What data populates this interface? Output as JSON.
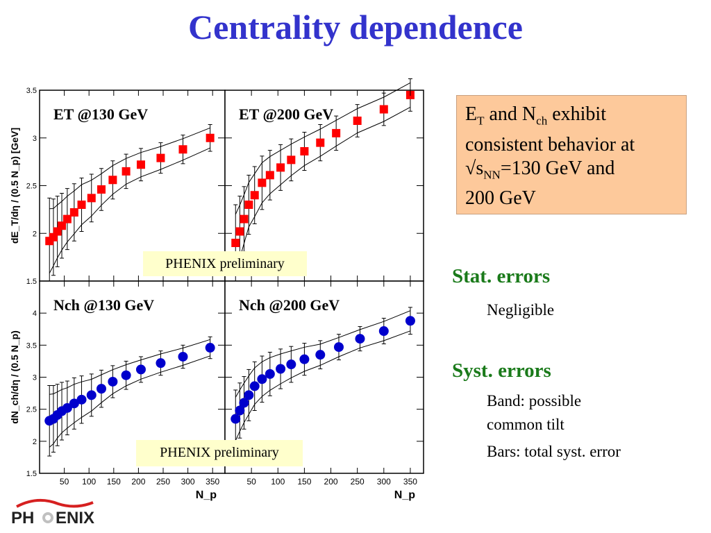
{
  "slide": {
    "title": "Centrality dependence",
    "box": {
      "et": "E",
      "et_sub": "T",
      "and": " and N",
      "nch_sub": "ch",
      "line1_rest": " exhibit",
      "line2": "consistent behavior at",
      "sqrt": "√s",
      "nn_sub": "NN",
      "line3_rest": "=130 GeV and",
      "line4": "200 GeV"
    },
    "stat_heading": "Stat. errors",
    "stat_text": "Negligible",
    "syst_heading": "Syst. errors",
    "syst_band_1": "Band: possible",
    "syst_band_2": "common tilt",
    "syst_bars": "Bars: total syst. error",
    "badge": "PHENIX preliminary",
    "logo_text_left": "PH",
    "logo_text_right": "ENIX",
    "colors": {
      "title": "#3333cc",
      "box": "#fdc99b",
      "heading": "#1a7a1a",
      "et_marker": "#ff0000",
      "nch_marker": "#0000cc"
    }
  },
  "chart_data": [
    {
      "type": "scatter",
      "label": "ET @130 GeV",
      "ylabel": "dE_T/dη / (0.5 N_p) [GeV]",
      "xlabel": "N_p",
      "marker": "square",
      "xlim": [
        0,
        375
      ],
      "ylim": [
        1.5,
        3.5
      ],
      "xticks": [
        50,
        100,
        150,
        200,
        250,
        300,
        350
      ],
      "yticks": [
        1.5,
        2,
        2.5,
        3,
        3.5
      ],
      "x": [
        20,
        28,
        36,
        45,
        56,
        70,
        85,
        105,
        125,
        148,
        175,
        205,
        245,
        290,
        345
      ],
      "y": [
        1.92,
        1.96,
        2.02,
        2.08,
        2.15,
        2.22,
        2.3,
        2.37,
        2.46,
        2.56,
        2.65,
        2.72,
        2.79,
        2.88,
        3.0
      ],
      "err": [
        0.45,
        0.4,
        0.37,
        0.34,
        0.32,
        0.3,
        0.28,
        0.25,
        0.22,
        0.2,
        0.18,
        0.17,
        0.16,
        0.15,
        0.14
      ]
    },
    {
      "type": "scatter",
      "label": "ET @200 GeV",
      "ylabel": "dE_T/dη / (0.5 N_p) [GeV]",
      "xlabel": "N_p",
      "marker": "square",
      "xlim": [
        0,
        375
      ],
      "ylim": [
        1.5,
        3.5
      ],
      "xticks": [
        50,
        100,
        150,
        200,
        250,
        300,
        350
      ],
      "yticks": [
        1.5,
        2,
        2.5,
        3,
        3.5
      ],
      "x": [
        20,
        28,
        36,
        45,
        56,
        70,
        85,
        105,
        125,
        150,
        180,
        210,
        250,
        300,
        350
      ],
      "y": [
        1.9,
        2.02,
        2.15,
        2.3,
        2.4,
        2.53,
        2.61,
        2.69,
        2.77,
        2.86,
        2.95,
        3.05,
        3.18,
        3.3,
        3.45
      ],
      "err": [
        0.4,
        0.37,
        0.34,
        0.31,
        0.3,
        0.28,
        0.26,
        0.24,
        0.22,
        0.2,
        0.19,
        0.18,
        0.17,
        0.17,
        0.17
      ]
    },
    {
      "type": "scatter",
      "label": "Nch @130 GeV",
      "ylabel": "dN_ch/dη / (0.5 N_p)",
      "xlabel": "N_p",
      "marker": "circle",
      "xlim": [
        0,
        375
      ],
      "ylim": [
        1.5,
        4.5
      ],
      "xticks": [
        50,
        100,
        150,
        200,
        250,
        300,
        350
      ],
      "yticks": [
        1.5,
        2,
        2.5,
        3,
        3.5,
        4
      ],
      "x": [
        20,
        28,
        36,
        45,
        56,
        70,
        85,
        105,
        125,
        148,
        175,
        205,
        245,
        290,
        345
      ],
      "y": [
        2.32,
        2.35,
        2.41,
        2.47,
        2.52,
        2.59,
        2.65,
        2.72,
        2.82,
        2.93,
        3.03,
        3.12,
        3.22,
        3.32,
        3.46
      ],
      "err": [
        0.55,
        0.52,
        0.48,
        0.45,
        0.42,
        0.4,
        0.37,
        0.33,
        0.29,
        0.25,
        0.22,
        0.2,
        0.19,
        0.18,
        0.17
      ]
    },
    {
      "type": "scatter",
      "label": "Nch @200 GeV",
      "ylabel": "dN_ch/dη / (0.5 N_p)",
      "xlabel": "N_p",
      "marker": "circle",
      "xlim": [
        0,
        375
      ],
      "ylim": [
        1.5,
        4.5
      ],
      "xticks": [
        50,
        100,
        150,
        200,
        250,
        300,
        350
      ],
      "yticks": [
        1.5,
        2,
        2.5,
        3,
        3.5,
        4
      ],
      "x": [
        20,
        28,
        36,
        45,
        56,
        70,
        85,
        105,
        125,
        150,
        180,
        215,
        255,
        300,
        350
      ],
      "y": [
        2.35,
        2.48,
        2.6,
        2.72,
        2.86,
        2.97,
        3.05,
        3.13,
        3.2,
        3.28,
        3.35,
        3.47,
        3.6,
        3.72,
        3.88
      ],
      "err": [
        0.45,
        0.43,
        0.41,
        0.4,
        0.38,
        0.36,
        0.34,
        0.31,
        0.28,
        0.25,
        0.22,
        0.2,
        0.19,
        0.2,
        0.21
      ]
    }
  ]
}
